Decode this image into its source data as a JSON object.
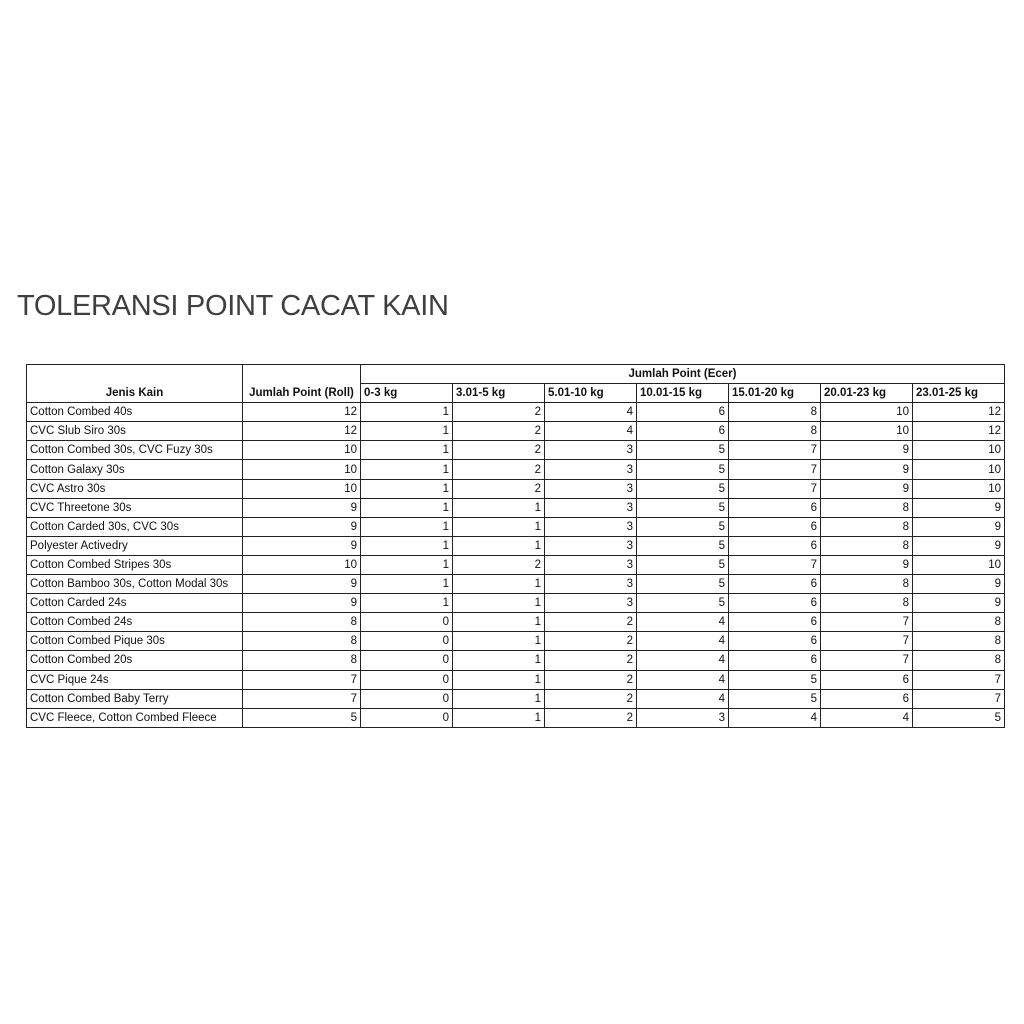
{
  "title": "TOLERANSI POINT CACAT KAIN",
  "table": {
    "header_name": "Jenis Kain",
    "header_roll": "Jumlah Point (Roll)",
    "header_ecer": "Jumlah Point (Ecer)",
    "ecer_columns": [
      "0-3 kg",
      "3.01-5 kg",
      "5.01-10 kg",
      "10.01-15 kg",
      "15.01-20 kg",
      "20.01-23 kg",
      "23.01-25 kg"
    ],
    "rows": [
      {
        "name": "Cotton Combed 40s",
        "roll": 12,
        "ecer": [
          1,
          2,
          4,
          6,
          8,
          10,
          12
        ]
      },
      {
        "name": "CVC Slub Siro 30s",
        "roll": 12,
        "ecer": [
          1,
          2,
          4,
          6,
          8,
          10,
          12
        ]
      },
      {
        "name": "Cotton Combed 30s, CVC Fuzy 30s",
        "roll": 10,
        "ecer": [
          1,
          2,
          3,
          5,
          7,
          9,
          10
        ]
      },
      {
        "name": "Cotton Galaxy 30s",
        "roll": 10,
        "ecer": [
          1,
          2,
          3,
          5,
          7,
          9,
          10
        ]
      },
      {
        "name": "CVC Astro 30s",
        "roll": 10,
        "ecer": [
          1,
          2,
          3,
          5,
          7,
          9,
          10
        ]
      },
      {
        "name": "CVC Threetone 30s",
        "roll": 9,
        "ecer": [
          1,
          1,
          3,
          5,
          6,
          8,
          9
        ]
      },
      {
        "name": "Cotton Carded 30s, CVC 30s",
        "roll": 9,
        "ecer": [
          1,
          1,
          3,
          5,
          6,
          8,
          9
        ]
      },
      {
        "name": "Polyester Activedry",
        "roll": 9,
        "ecer": [
          1,
          1,
          3,
          5,
          6,
          8,
          9
        ]
      },
      {
        "name": "Cotton Combed Stripes 30s",
        "roll": 10,
        "ecer": [
          1,
          2,
          3,
          5,
          7,
          9,
          10
        ]
      },
      {
        "name": "Cotton Bamboo 30s, Cotton Modal 30s",
        "roll": 9,
        "ecer": [
          1,
          1,
          3,
          5,
          6,
          8,
          9
        ]
      },
      {
        "name": "Cotton Carded 24s",
        "roll": 9,
        "ecer": [
          1,
          1,
          3,
          5,
          6,
          8,
          9
        ]
      },
      {
        "name": "Cotton Combed 24s",
        "roll": 8,
        "ecer": [
          0,
          1,
          2,
          4,
          6,
          7,
          8
        ]
      },
      {
        "name": "Cotton Combed Pique 30s",
        "roll": 8,
        "ecer": [
          0,
          1,
          2,
          4,
          6,
          7,
          8
        ]
      },
      {
        "name": "Cotton Combed 20s",
        "roll": 8,
        "ecer": [
          0,
          1,
          2,
          4,
          6,
          7,
          8
        ]
      },
      {
        "name": "CVC Pique 24s",
        "roll": 7,
        "ecer": [
          0,
          1,
          2,
          4,
          5,
          6,
          7
        ]
      },
      {
        "name": "Cotton Combed Baby Terry",
        "roll": 7,
        "ecer": [
          0,
          1,
          2,
          4,
          5,
          6,
          7
        ]
      },
      {
        "name": "CVC Fleece, Cotton Combed Fleece",
        "roll": 5,
        "ecer": [
          0,
          1,
          2,
          3,
          4,
          4,
          5
        ]
      }
    ]
  }
}
